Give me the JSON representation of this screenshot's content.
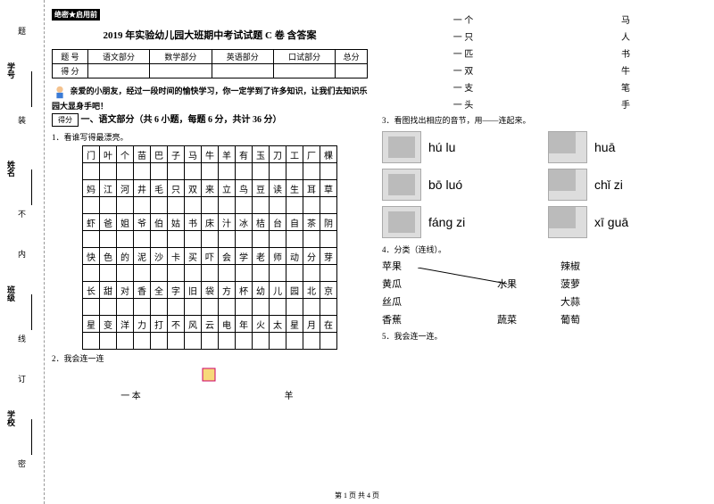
{
  "binding": {
    "labels": [
      "学号",
      "姓名",
      "班级",
      "学校"
    ],
    "marks": [
      "题",
      "装",
      "不",
      "内",
      "线",
      "订",
      "密"
    ]
  },
  "header": {
    "secret": "绝密★启用前",
    "title": "2019 年实验幼儿园大班期中考试试题 C 卷 含答案"
  },
  "score_table": {
    "row1": [
      "题 号",
      "语文部分",
      "数学部分",
      "英语部分",
      "口试部分",
      "总分"
    ],
    "row2_label": "得 分"
  },
  "intro": "亲爱的小朋友，经过一段时间的愉快学习，你一定学到了许多知识，让我们去知识乐园大显身手吧！",
  "scorebox": "得分",
  "section1": "一、语文部分（共 6 小题，每题 6 分，共计 36 分）",
  "q1": "1．看谁写得最漂亮。",
  "char_grid": [
    [
      "门",
      "叶",
      "个",
      "苗",
      "巴",
      "子",
      "马",
      "牛",
      "羊",
      "有",
      "玉",
      "刀",
      "工",
      "厂",
      "棵"
    ],
    [
      "妈",
      "江",
      "河",
      "井",
      "毛",
      "只",
      "双",
      "来",
      "立",
      "鸟",
      "豆",
      "读",
      "生",
      "耳",
      "草"
    ],
    [
      "虾",
      "爸",
      "姐",
      "爷",
      "伯",
      "姑",
      "书",
      "床",
      "汁",
      "冰",
      "桔",
      "台",
      "自",
      "茶",
      "阴"
    ],
    [
      "快",
      "色",
      "的",
      "泥",
      "沙",
      "卡",
      "买",
      "吓",
      "会",
      "学",
      "老",
      "师",
      "动",
      "分",
      "芽"
    ],
    [
      "长",
      "甜",
      "对",
      "香",
      "全",
      "字",
      "旧",
      "袋",
      "方",
      "杯",
      "幼",
      "儿",
      "园",
      "北",
      "京"
    ],
    [
      "星",
      "变",
      "洋",
      "力",
      "打",
      "不",
      "风",
      "云",
      "电",
      "年",
      "火",
      "太",
      "星",
      "月",
      "在"
    ]
  ],
  "q2": "2．我会连一连",
  "pairs_left": [
    [
      "一 本",
      "羊"
    ]
  ],
  "pairs_right": [
    [
      "一 个",
      "马"
    ],
    [
      "一 只",
      "人"
    ],
    [
      "一 匹",
      "书"
    ],
    [
      "一 双",
      "牛"
    ],
    [
      "一 支",
      "笔"
    ],
    [
      "一 头",
      "手"
    ]
  ],
  "q3": "3．看图找出相应的音节，用——连起来。",
  "pinyin_rows": [
    {
      "py1": "hú lu",
      "py2": "huā"
    },
    {
      "py1": "bō luó",
      "py2": "chǐ zi"
    },
    {
      "py1": "fáng zi",
      "py2": "xī guā"
    }
  ],
  "q4": "4．分类（连线）。",
  "classify_rows": [
    {
      "a": "苹果",
      "b": "",
      "c": "辣椒"
    },
    {
      "a": "黄瓜",
      "b": "水果",
      "c": "菠萝"
    },
    {
      "a": "丝瓜",
      "b": "",
      "c": "大蒜"
    },
    {
      "a": "香蕉",
      "b": "蔬菜",
      "c": "葡萄"
    }
  ],
  "q5": "5．我会连一连。",
  "footer": "第 1 页 共 4 页"
}
